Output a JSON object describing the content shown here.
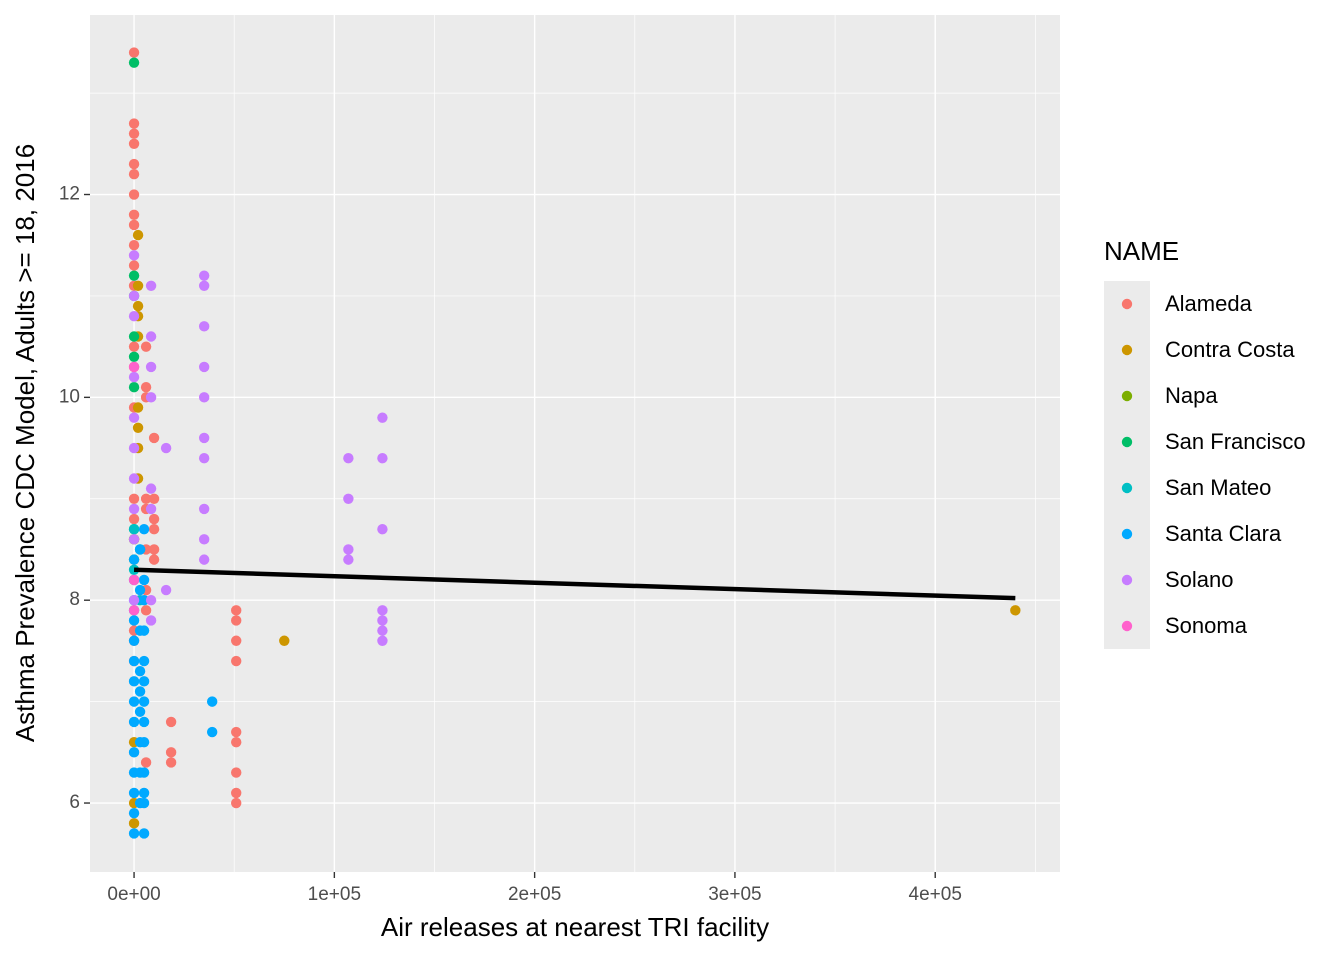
{
  "chart_data": {
    "type": "scatter",
    "x_label": "Air releases at nearest TRI facility",
    "y_label": "Asthma Prevalence CDC Model, Adults >= 18, 2016",
    "legend_title": "NAME",
    "legend_position": "right",
    "grid": true,
    "xlim": [
      -22000,
      462300
    ],
    "ylim": [
      5.32,
      13.77
    ],
    "xticks": [
      {
        "value": 0,
        "label": "0e+00"
      },
      {
        "value": 100000,
        "label": "1e+05"
      },
      {
        "value": 200000,
        "label": "2e+05"
      },
      {
        "value": 300000,
        "label": "3e+05"
      },
      {
        "value": 400000,
        "label": "4e+05"
      }
    ],
    "yticks": [
      6,
      8,
      10,
      12
    ],
    "trend_line": {
      "color": "#000000",
      "x": [
        0,
        440000
      ],
      "y": [
        8.3,
        8.02
      ]
    },
    "series": [
      {
        "name": "Alameda",
        "color": "#F8766D",
        "x": [
          0,
          0,
          0,
          0,
          0,
          0,
          0,
          0,
          0,
          0,
          0,
          0,
          0,
          0,
          0,
          0,
          0,
          0,
          0,
          0,
          0,
          6000,
          6000,
          6000,
          6000,
          6000,
          6000,
          6000,
          6000,
          6000,
          10000,
          10000,
          10000,
          10000,
          10000,
          10000,
          18500,
          18500,
          18500,
          51000,
          51000,
          51000,
          51000,
          51000,
          51000,
          51000,
          51000,
          51000
        ],
        "y": [
          13.4,
          12.7,
          12.6,
          12.5,
          12.3,
          12.2,
          12.0,
          11.8,
          11.7,
          11.5,
          11.3,
          11.1,
          10.5,
          10.3,
          9.9,
          9.0,
          8.8,
          8.2,
          7.7,
          7.6,
          7.4,
          10.5,
          10.1,
          10.0,
          9.0,
          8.9,
          8.5,
          8.1,
          7.9,
          6.4,
          9.6,
          9.0,
          8.8,
          8.7,
          8.5,
          8.4,
          6.8,
          6.5,
          6.4,
          7.9,
          7.8,
          7.6,
          7.4,
          6.7,
          6.6,
          6.3,
          6.1,
          6.0
        ]
      },
      {
        "name": "Contra Costa",
        "color": "#CD9600",
        "x": [
          2000,
          2000,
          2000,
          2000,
          2000,
          2000,
          2000,
          2000,
          2000,
          0,
          0,
          0,
          0,
          75000,
          440000
        ],
        "y": [
          11.6,
          11.1,
          10.9,
          10.8,
          10.6,
          9.9,
          9.7,
          9.5,
          9.2,
          8.6,
          6.6,
          6.0,
          5.8,
          7.6,
          7.9
        ]
      },
      {
        "name": "Napa",
        "color": "#7CAE00",
        "x": [
          0,
          0
        ],
        "y": [
          8.6,
          8.4
        ]
      },
      {
        "name": "San Francisco",
        "color": "#00BE67",
        "x": [
          0,
          0,
          0,
          0,
          0,
          0,
          0
        ],
        "y": [
          13.3,
          11.2,
          11.0,
          10.6,
          10.4,
          10.1,
          8.7
        ]
      },
      {
        "name": "San Mateo",
        "color": "#00BFC4",
        "x": [
          0,
          3000,
          0,
          3000,
          0
        ],
        "y": [
          8.7,
          8.5,
          8.3,
          8.0,
          7.9
        ]
      },
      {
        "name": "Santa Clara",
        "color": "#00A9FF",
        "x": [
          0,
          0,
          0,
          0,
          0,
          0,
          0,
          0,
          0,
          0,
          0,
          0,
          0,
          0,
          3000,
          3000,
          3000,
          3000,
          3000,
          3000,
          3000,
          3000,
          3000,
          5000,
          5000,
          5000,
          5000,
          5000,
          5000,
          5000,
          5000,
          5000,
          5000,
          5000,
          5000,
          5000,
          39000,
          39000
        ],
        "y": [
          8.4,
          8.2,
          8.0,
          7.8,
          7.6,
          7.4,
          7.2,
          7.0,
          6.8,
          6.5,
          6.3,
          6.1,
          5.9,
          5.7,
          8.5,
          8.1,
          7.7,
          7.3,
          7.1,
          6.9,
          6.6,
          6.3,
          6.0,
          8.7,
          8.2,
          8.0,
          7.7,
          7.4,
          7.2,
          7.0,
          6.8,
          6.6,
          6.3,
          6.1,
          6.0,
          5.7,
          7.0,
          6.7
        ]
      },
      {
        "name": "Solano",
        "color": "#C77CFF",
        "x": [
          0,
          0,
          0,
          0,
          0,
          0,
          0,
          0,
          0,
          0,
          8500,
          8500,
          8500,
          8500,
          8500,
          8500,
          8500,
          8500,
          16000,
          16000,
          35000,
          35000,
          35000,
          35000,
          35000,
          35000,
          35000,
          35000,
          35000,
          35000,
          107000,
          107000,
          107000,
          107000,
          124000,
          124000,
          124000,
          124000,
          124000,
          124000,
          124000
        ],
        "y": [
          11.4,
          11.0,
          10.8,
          10.2,
          9.8,
          9.5,
          9.2,
          8.9,
          8.6,
          8.0,
          11.1,
          10.6,
          10.3,
          10.0,
          9.1,
          8.9,
          8.0,
          7.8,
          9.5,
          8.1,
          11.2,
          11.1,
          10.7,
          10.3,
          10.0,
          9.6,
          9.4,
          8.9,
          8.6,
          8.4,
          9.4,
          9.0,
          8.5,
          8.4,
          9.8,
          9.4,
          8.7,
          7.9,
          7.8,
          7.7,
          7.6
        ]
      },
      {
        "name": "Sonoma",
        "color": "#FF61CC",
        "x": [
          0,
          0,
          0
        ],
        "y": [
          10.3,
          8.2,
          7.9
        ]
      }
    ]
  }
}
